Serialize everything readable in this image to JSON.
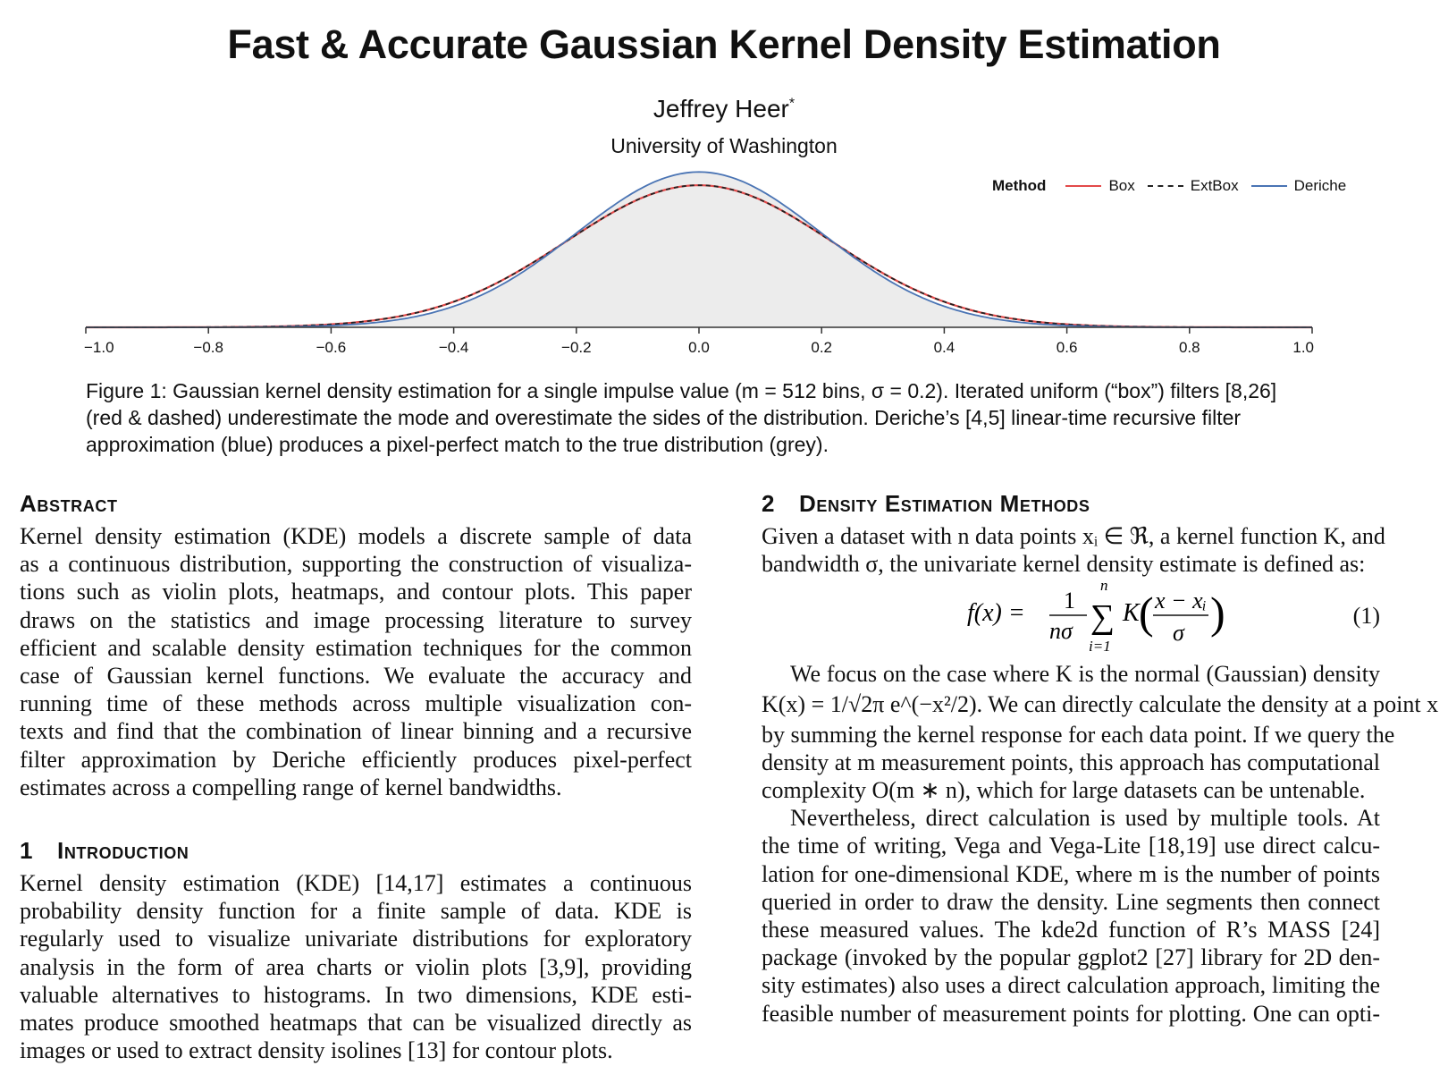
{
  "paper": {
    "title": "Fast & Accurate Gaussian Kernel Density Estimation",
    "author": "Jeffrey Heer",
    "author_mark": "*",
    "affiliation": "University of Washington"
  },
  "figure": {
    "legend": {
      "title": "Method",
      "items": [
        {
          "label": "Box",
          "color": "#e34a4a",
          "dash": "solid"
        },
        {
          "label": "ExtBox",
          "color": "#222222",
          "dash": "dashed"
        },
        {
          "label": "Deriche",
          "color": "#4a74b4",
          "dash": "solid"
        }
      ]
    },
    "caption_lines": [
      "Figure 1: Gaussian kernel density estimation for a single impulse value (m = 512 bins, σ = 0.2). Iterated uniform (“box”) filters [8,26]",
      "(red & dashed) underestimate the mode and overestimate the sides of the distribution. Deriche’s [4,5] linear-time recursive filter",
      "approximation (blue) produces a pixel-perfect match to the true distribution (grey)."
    ]
  },
  "chart_data": {
    "type": "area",
    "xlim": [
      -1.0,
      1.0
    ],
    "ylim": [
      0,
      2.2
    ],
    "x_ticks": [
      "−1.0",
      "−0.8",
      "−0.6",
      "−0.4",
      "−0.2",
      "0.0",
      "0.2",
      "0.4",
      "0.6",
      "0.8",
      "1.0"
    ],
    "y_axis_visible": false,
    "grid": false,
    "legend_position": "top-right",
    "colors": {
      "true_fill": "#ececec",
      "true_stroke": "#c4c4c4",
      "box": "#e34a4a",
      "extbox": "#222222",
      "deriche": "#4a74b4"
    },
    "series": [
      {
        "name": "Deriche",
        "kind": "gaussian",
        "mean": 0.0,
        "sigma": 0.2,
        "peak": 1.99
      },
      {
        "name": "Box",
        "kind": "gaussian",
        "mean": 0.0,
        "sigma": 0.216,
        "peak": 1.82
      },
      {
        "name": "ExtBox",
        "kind": "gaussian",
        "mean": 0.0,
        "sigma": 0.216,
        "peak": 1.82
      }
    ]
  },
  "abstract": {
    "heading": "Abstract",
    "lines": [
      "Kernel density estimation (KDE) models a discrete sample of data",
      "as a continuous distribution, supporting the construction of visualiza-",
      "tions such as violin plots, heatmaps, and contour plots. This paper",
      "draws on the statistics and image processing literature to survey",
      "efficient and scalable density estimation techniques for the common",
      "case of Gaussian kernel functions. We evaluate the accuracy and",
      "running time of these methods across multiple visualization con-",
      "texts and find that the combination of linear binning and a recursive",
      "filter approximation by Deriche efficiently produces pixel-perfect",
      "estimates across a compelling range of kernel bandwidths."
    ]
  },
  "intro": {
    "number": "1",
    "heading": "Introduction",
    "lines": [
      "Kernel density estimation (KDE) [14,17] estimates a continuous",
      "probability density function for a finite sample of data. KDE is",
      "regularly used to visualize univariate distributions for exploratory",
      "analysis in the form of area charts or violin plots [3,9], providing",
      "valuable alternatives to histograms. In two dimensions, KDE esti-",
      "mates produce smoothed heatmaps that can be visualized directly as",
      "images or used to extract density isolines [13] for contour plots."
    ]
  },
  "methods": {
    "number": "2",
    "heading": "Density Estimation Methods",
    "intro_lines": [
      "Given a dataset with n data points xᵢ ∈ ℜ, a kernel function K, and",
      "bandwidth σ, the univariate kernel density estimate is defined as:"
    ],
    "equation": {
      "lhs": "f(x) =",
      "frac_num": "1",
      "frac_den": "nσ",
      "sum_top": "n",
      "sum_bottom": "i=1",
      "kernel": "K",
      "arg_num": "x − xᵢ",
      "arg_den": "σ",
      "label": "(1)"
    },
    "p1_lines": [
      "We focus on the case where K is the normal (Gaussian) density",
      "K(x) = 1/√2π e^(−x²/2). We can directly calculate the density at a point x",
      "by summing the kernel response for each data point. If we query the",
      "density at m measurement points, this approach has computational",
      "complexity O(m ∗ n), which for large datasets can be untenable."
    ],
    "p2_lines": [
      "Nevertheless, direct calculation is used by multiple tools. At",
      "the time of writing, Vega and Vega-Lite [18,19] use direct calcu-",
      "lation for one-dimensional KDE, where m is the number of points",
      "queried in order to draw the density. Line segments then connect",
      "these measured values. The kde2d function of R’s MASS [24]",
      "package (invoked by the popular ggplot2 [27] library for 2D den-",
      "sity estimates) also uses a direct calculation approach, limiting the",
      "feasible number of measurement points for plotting. One can opti-"
    ]
  }
}
